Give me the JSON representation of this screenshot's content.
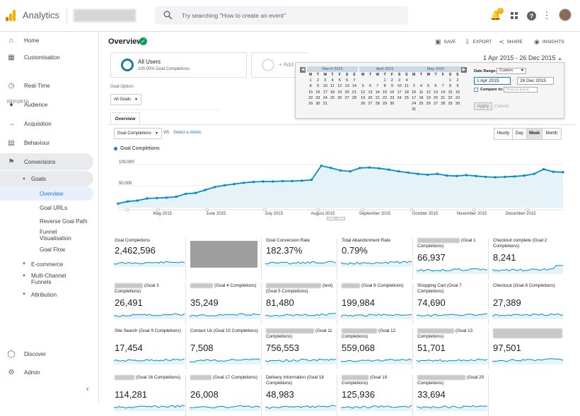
{
  "app": {
    "title": "Analytics"
  },
  "search": {
    "placeholder": "Try searching \"How to create an event\""
  },
  "topbar": {
    "notification_count": "1"
  },
  "sidebar": {
    "home": "Home",
    "customisation": "Customisation",
    "reports_heading": "REPORTS",
    "realtime": "Real-Time",
    "audience": "Audience",
    "acquisition": "Acquisition",
    "behaviour": "Behaviour",
    "conversions": "Conversions",
    "goals": "Goals",
    "goals_items": [
      "Overview",
      "Goal URLs",
      "Reverse Goal Path",
      "Funnel Visualisation",
      "Goal Flow"
    ],
    "ecommerce": "E-commerce",
    "multichannel": "Multi-Channel Funnels",
    "attribution": "Attribution",
    "discover": "Discover",
    "admin": "Admin"
  },
  "header": {
    "title": "Overview",
    "save": "SAVE",
    "export": "EXPORT",
    "share": "SHARE",
    "insights": "INSIGHTS",
    "date_range": "1 Apr 2015 - 26 Dec 2015"
  },
  "segments": {
    "all_users": "All Users",
    "all_users_sub": "100.00% Goal Completions",
    "add_segment": "+ Add Se"
  },
  "calendar": {
    "months": [
      {
        "name": "March 2015",
        "lead": 0,
        "days": 31
      },
      {
        "name": "April 2015",
        "lead": 3,
        "days": 30
      },
      {
        "name": "May 2015",
        "lead": 5,
        "days": 31
      }
    ],
    "dow": [
      "M",
      "T",
      "W",
      "T",
      "F",
      "S",
      "S"
    ],
    "date_range_label": "Date Range:",
    "date_range_value": "Custom",
    "start": "1 Apr 2015",
    "end": "26 Dec 2015",
    "compare_label": "Compare to:",
    "compare_value": "Previous period",
    "apply": "Apply",
    "cancel": "Cancel"
  },
  "goal_option": {
    "label": "Goal Option:",
    "value": "All Goals"
  },
  "tabs": {
    "overview": "Overview"
  },
  "metric": {
    "selected": "Goal Completions",
    "vs": "VS",
    "select": "Select a metric"
  },
  "granularity": [
    "Hourly",
    "Day",
    "Week",
    "Month"
  ],
  "chart_data": {
    "type": "area",
    "legend": "Goal Completions",
    "yticks": [
      "100,000",
      "50,000"
    ],
    "ylim": [
      0,
      120000
    ],
    "xlabels": [
      "May 2015",
      "June 2015",
      "July 2015",
      "August 2015",
      "September 2015",
      "October 2015",
      "November 2015",
      "December 2015"
    ],
    "values": [
      8000,
      13000,
      15000,
      20000,
      21000,
      22000,
      24000,
      31000,
      33000,
      40000,
      47000,
      51000,
      54000,
      57000,
      59000,
      60000,
      60000,
      61000,
      61000,
      62000,
      64000,
      97000,
      92000,
      86000,
      84000,
      92000,
      93000,
      91000,
      88000,
      84000,
      81000,
      78000,
      76000,
      78000,
      74000,
      73000,
      75000,
      73000,
      71000,
      70000,
      71000,
      72000,
      74000,
      78000,
      89000,
      83000,
      82000
    ],
    "color": "#058dc7"
  },
  "tiles": [
    {
      "label": "Goal Completions",
      "value": "2,462,596"
    },
    {
      "label": "",
      "value": ""
    },
    {
      "label": "Goal Conversion Rate",
      "value": "182.37%"
    },
    {
      "label": "Total Abandonment Rate",
      "value": "0.79%"
    },
    {
      "label": "(Goal 1 Completions)",
      "value": "66,937"
    },
    {
      "label": "Checkout complete (Goal 2 Completions)",
      "value": "8,241"
    },
    {
      "label": "(Goal 3 Completions)",
      "value": "26,491"
    },
    {
      "label": "(Goal 4 Completions)",
      "value": "35,249"
    },
    {
      "label": "(text) (Goal 5 Completions)",
      "value": "81,480"
    },
    {
      "label": "(Goal 6 Completions)",
      "value": "199,984"
    },
    {
      "label": "Shopping Cart (Goal 7 Completions)",
      "value": "74,690"
    },
    {
      "label": "Checkout (Goal 8 Completions)",
      "value": "27,389"
    },
    {
      "label": "Site Search (Goal 9 Completions)",
      "value": "17,454"
    },
    {
      "label": "Contact Us (Goal 10 Completions)",
      "value": "7,508"
    },
    {
      "label": "(Goal 11 Completions)",
      "value": "756,553"
    },
    {
      "label": "(Goal 12 Completions)",
      "value": "559,068"
    },
    {
      "label": "(Goal 13 Completions)",
      "value": "51,701"
    },
    {
      "label": "",
      "value": "97,501"
    },
    {
      "label": "(Goal 16 Completions)",
      "value": "114,281"
    },
    {
      "label": "(Goal 17 Completions)",
      "value": "26,008"
    },
    {
      "label": "Delivery Information (Goal 18 Completions)",
      "value": "48,983"
    },
    {
      "label": "(Goal 19 Completions)",
      "value": "125,936"
    },
    {
      "label": "(Goal 20 Completions)",
      "value": "33,694"
    }
  ]
}
